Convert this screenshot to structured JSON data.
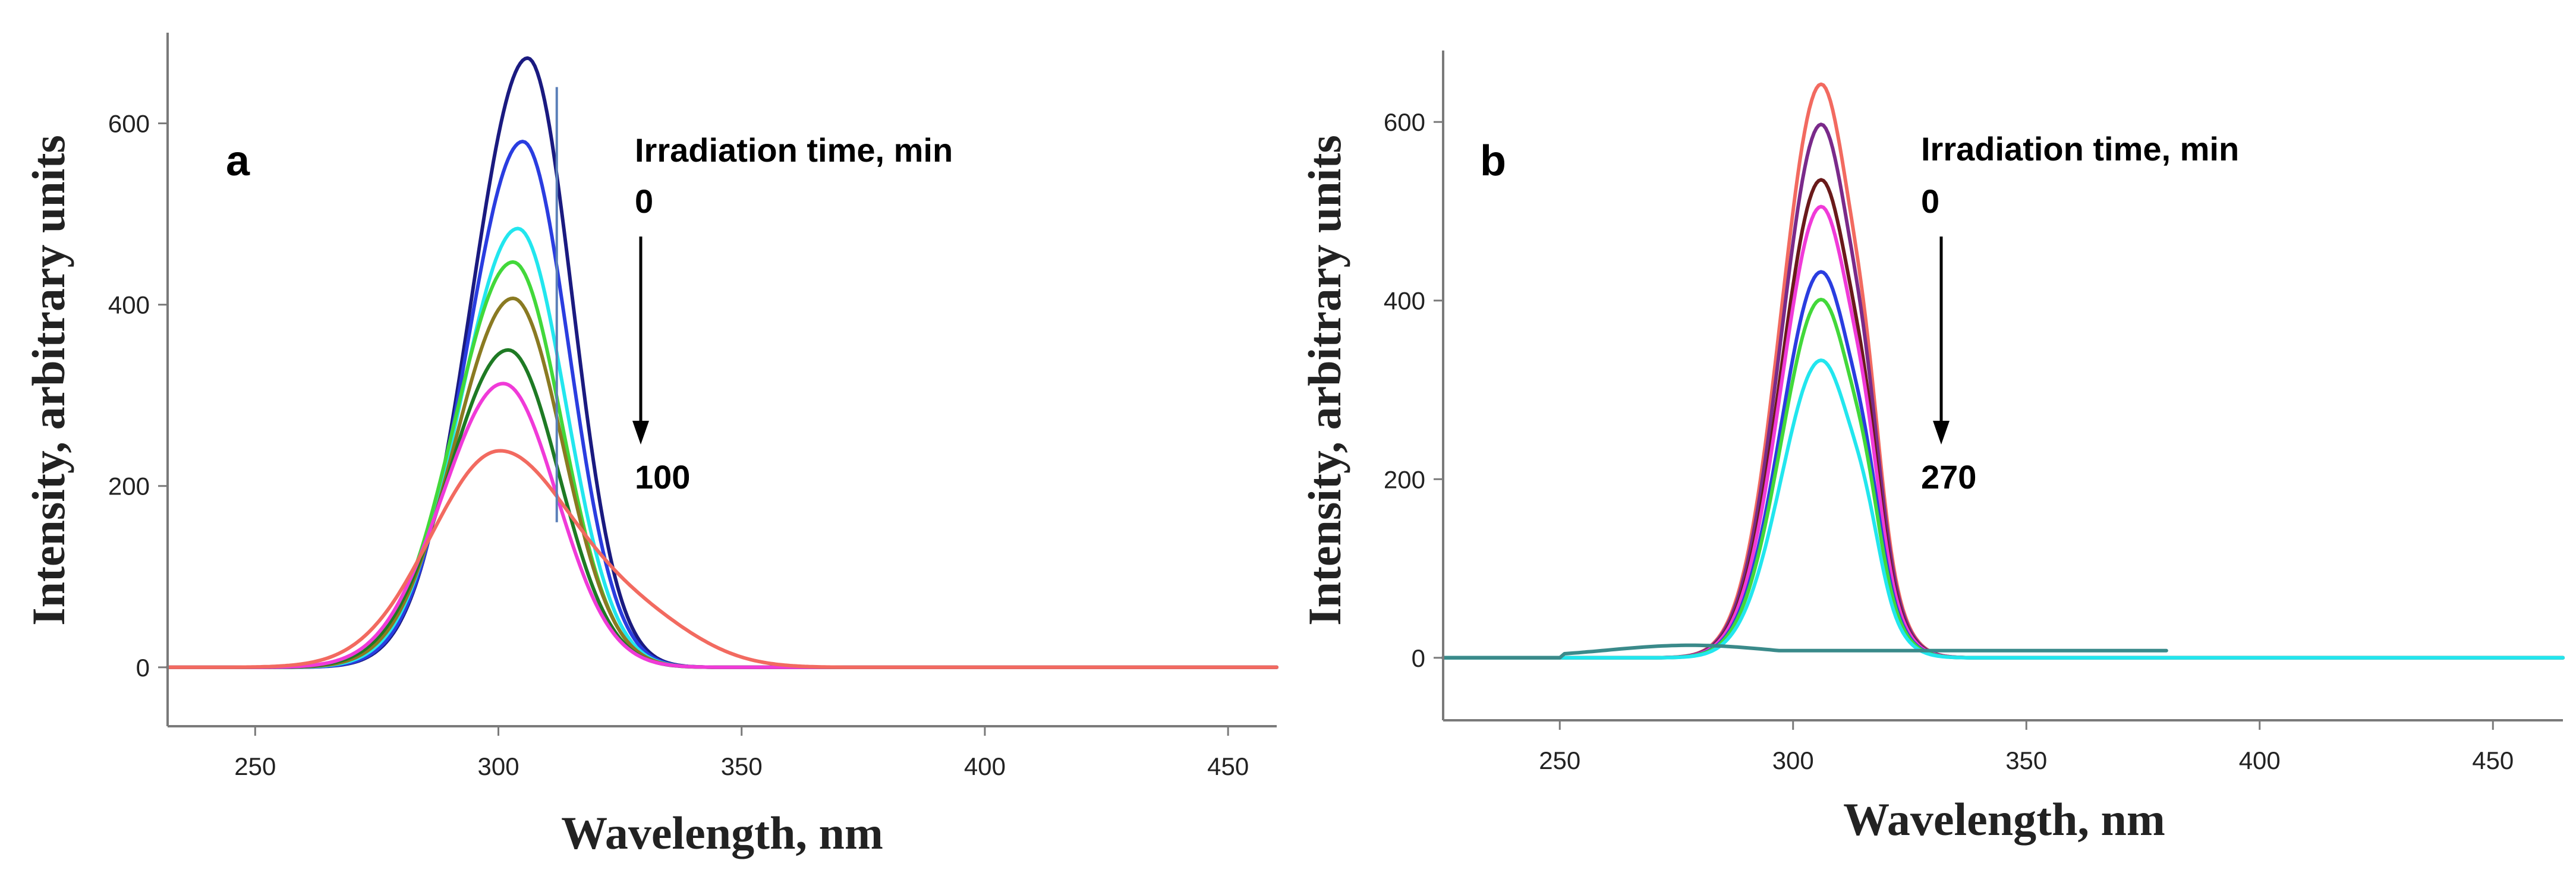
{
  "chart_data": [
    {
      "type": "line",
      "panel": "a",
      "title": "",
      "xlabel": "Wavelength, nm",
      "ylabel": "Intensity, arbitrary units",
      "xlim": [
        232,
        460
      ],
      "ylim": [
        -65,
        700
      ],
      "xticks": [
        250,
        300,
        350,
        400,
        450
      ],
      "yticks": [
        0,
        200,
        400,
        600
      ],
      "legend_title": "Irradiation time, min",
      "arrow_start": "0",
      "arrow_end": "100",
      "marker_line_x": 312,
      "marker_line_range": [
        160,
        640
      ],
      "series": [
        {
          "name": "t1",
          "color": "#1a1a80",
          "peak_x": 306,
          "peak_y": 672,
          "sigma_l": 11.5,
          "sigma_r": 9.2
        },
        {
          "name": "t2",
          "color": "#2a3de0",
          "peak_x": 305,
          "peak_y": 580,
          "sigma_l": 11.5,
          "sigma_r": 9.5
        },
        {
          "name": "t3",
          "color": "#22e6ee",
          "peak_x": 304,
          "peak_y": 484,
          "sigma_l": 11.8,
          "sigma_r": 9.8
        },
        {
          "name": "t4",
          "color": "#42d83a",
          "peak_x": 303,
          "peak_y": 447,
          "sigma_l": 12.0,
          "sigma_r": 10.0
        },
        {
          "name": "t5",
          "color": "#8a7a22",
          "peak_x": 303,
          "peak_y": 407,
          "sigma_l": 12.0,
          "sigma_r": 10.2
        },
        {
          "name": "t6",
          "color": "#1e7a24",
          "peak_x": 302,
          "peak_y": 350,
          "sigma_l": 12.3,
          "sigma_r": 10.5
        },
        {
          "name": "t7",
          "color": "#f03ad8",
          "peak_x": 301,
          "peak_y": 313,
          "sigma_l": 12.5,
          "sigma_r": 11.0
        },
        {
          "name": "t8",
          "color": "#f26a60",
          "peak_x": 300,
          "peak_y": 237,
          "sigma_l": 14.0,
          "sigma_r": 15.5
        }
      ]
    },
    {
      "type": "line",
      "panel": "b",
      "title": "",
      "xlabel": "Wavelength, nm",
      "ylabel": "Intensity, arbitrary units",
      "xlim": [
        225,
        465
      ],
      "ylim": [
        -70,
        680
      ],
      "xticks": [
        250,
        300,
        350,
        400,
        450
      ],
      "yticks": [
        0,
        200,
        400,
        600
      ],
      "legend_title": "Irradiation time, min",
      "arrow_start": "0",
      "arrow_end": "270",
      "baseline_series": {
        "name": "blank",
        "color": "#3a8a8a",
        "peak_x": 278,
        "peak_y": 14
      },
      "series": [
        {
          "name": "t1",
          "color": "#f26a60",
          "peak_x": 306,
          "peak_y": 642,
          "sigma_l": 8.5,
          "sigma_r": 7.8
        },
        {
          "name": "t2",
          "color": "#7a2a8a",
          "peak_x": 306,
          "peak_y": 597,
          "sigma_l": 8.5,
          "sigma_r": 7.8
        },
        {
          "name": "t3",
          "color": "#6a1a1a",
          "peak_x": 306,
          "peak_y": 535,
          "sigma_l": 8.5,
          "sigma_r": 7.8
        },
        {
          "name": "t4",
          "color": "#f03ad8",
          "peak_x": 306,
          "peak_y": 505,
          "sigma_l": 8.5,
          "sigma_r": 7.8
        },
        {
          "name": "t5",
          "color": "#2a3de0",
          "peak_x": 306,
          "peak_y": 432,
          "sigma_l": 8.5,
          "sigma_r": 7.8
        },
        {
          "name": "t6",
          "color": "#42d83a",
          "peak_x": 306,
          "peak_y": 401,
          "sigma_l": 8.5,
          "sigma_r": 7.8
        },
        {
          "name": "t7",
          "color": "#22e6ee",
          "peak_x": 306,
          "peak_y": 333,
          "sigma_l": 8.5,
          "sigma_r": 7.8
        }
      ]
    }
  ]
}
